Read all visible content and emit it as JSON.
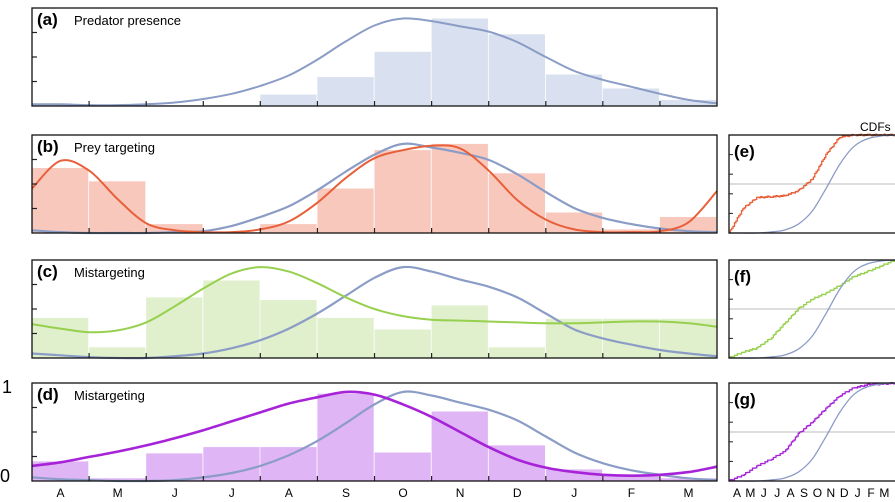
{
  "colors": {
    "background": "#ffffff",
    "predator_fill": "#d9e0ef",
    "predator_line": "#8b9dc6",
    "prey_fill": "#f9c8bc",
    "prey_line": "#e8603a",
    "mis_c_fill": "#e0efcc",
    "mis_c_line": "#97d04f",
    "mis_d_fill": "#dfb5f5",
    "mis_d_line": "#a623d8",
    "ref_line": "#8b9dc6"
  },
  "chart_data": [
    {
      "id": "a",
      "type": "bar",
      "label_letter": "(a)",
      "title": "Predator presence",
      "categories": [
        "A",
        "M",
        "J",
        "J",
        "A",
        "S",
        "O",
        "N",
        "D",
        "J",
        "F",
        "M"
      ],
      "values": [
        0.02,
        0.01,
        0.01,
        0.01,
        0.13,
        0.33,
        0.62,
        1.0,
        0.82,
        0.36,
        0.2,
        0.07
      ],
      "density_line": {
        "x": [
          0,
          0.5,
          1,
          1.5,
          2,
          2.5,
          3,
          3.5,
          4,
          4.5,
          5,
          5.5,
          6,
          6.5,
          7,
          7.5,
          8,
          8.5,
          9,
          9.5,
          10,
          10.5,
          11,
          11.5,
          12
        ],
        "y": [
          0.02,
          0.02,
          0.01,
          0.01,
          0.02,
          0.04,
          0.08,
          0.14,
          0.23,
          0.35,
          0.53,
          0.74,
          0.92,
          1.0,
          0.97,
          0.91,
          0.85,
          0.73,
          0.56,
          0.4,
          0.3,
          0.22,
          0.14,
          0.07,
          0.03
        ]
      },
      "ylim": [
        0,
        1.12
      ]
    },
    {
      "id": "b",
      "type": "bar",
      "label_letter": "(b)",
      "title": "Prey targeting",
      "categories": [
        "A",
        "M",
        "J",
        "J",
        "A",
        "S",
        "O",
        "N",
        "D",
        "J",
        "F",
        "M"
      ],
      "values": [
        0.73,
        0.58,
        0.1,
        0.01,
        0.1,
        0.5,
        0.93,
        1.0,
        0.67,
        0.23,
        0.04,
        0.18
      ],
      "density_line": {
        "x": [
          0,
          0.5,
          1,
          1.5,
          2,
          2.5,
          3,
          3.5,
          4,
          4.5,
          5,
          5.5,
          6,
          6.5,
          7,
          7.5,
          8,
          8.5,
          9,
          9.5,
          10,
          10.5,
          11,
          11.5,
          12
        ],
        "y": [
          0.5,
          0.81,
          0.7,
          0.38,
          0.11,
          0.03,
          0.01,
          0.01,
          0.04,
          0.13,
          0.34,
          0.62,
          0.84,
          0.93,
          0.98,
          0.95,
          0.7,
          0.37,
          0.15,
          0.04,
          0.01,
          0.01,
          0.02,
          0.12,
          0.47
        ]
      },
      "reference_line": {
        "x": [
          0,
          0.5,
          1,
          1.5,
          2,
          2.5,
          3,
          3.5,
          4,
          4.5,
          5,
          5.5,
          6,
          6.5,
          7,
          7.5,
          8,
          8.5,
          9,
          9.5,
          10,
          10.5,
          11,
          11.5,
          12
        ],
        "y": [
          0.03,
          0.01,
          0.0,
          0.0,
          0.0,
          0.01,
          0.02,
          0.08,
          0.18,
          0.3,
          0.48,
          0.69,
          0.88,
          1.0,
          0.96,
          0.9,
          0.82,
          0.66,
          0.46,
          0.28,
          0.17,
          0.1,
          0.05,
          0.02,
          0.01
        ]
      },
      "ylim": [
        0,
        1.1
      ]
    },
    {
      "id": "c",
      "type": "bar",
      "label_letter": "(c)",
      "title": "Mistargeting",
      "categories": [
        "A",
        "M",
        "J",
        "J",
        "A",
        "S",
        "O",
        "N",
        "D",
        "J",
        "F",
        "M"
      ],
      "values": [
        0.45,
        0.12,
        0.68,
        0.87,
        0.65,
        0.45,
        0.32,
        0.59,
        0.12,
        0.44,
        0.44,
        0.44
      ],
      "density_line": {
        "x": [
          0,
          0.5,
          1,
          1.5,
          2,
          2.5,
          3,
          3.5,
          4,
          4.5,
          5,
          5.5,
          6,
          6.5,
          7,
          7.5,
          8,
          8.5,
          9,
          9.5,
          10,
          10.5,
          11,
          11.5,
          12
        ],
        "y": [
          0.38,
          0.33,
          0.29,
          0.31,
          0.4,
          0.58,
          0.78,
          0.95,
          1.02,
          0.97,
          0.84,
          0.68,
          0.55,
          0.47,
          0.43,
          0.42,
          0.41,
          0.4,
          0.39,
          0.39,
          0.4,
          0.41,
          0.41,
          0.39,
          0.35
        ]
      },
      "reference_line": {
        "x": [
          0,
          0.5,
          1,
          1.5,
          2,
          2.5,
          3,
          3.5,
          4,
          4.5,
          5,
          5.5,
          6,
          6.5,
          7,
          7.5,
          8,
          8.5,
          9,
          9.5,
          10,
          10.5,
          11,
          11.5,
          12
        ],
        "y": [
          0.05,
          0.03,
          0.01,
          0.0,
          0.0,
          0.02,
          0.05,
          0.11,
          0.2,
          0.33,
          0.5,
          0.7,
          0.9,
          1.02,
          0.97,
          0.88,
          0.8,
          0.68,
          0.5,
          0.32,
          0.22,
          0.15,
          0.09,
          0.05,
          0.02
        ]
      },
      "ylim": [
        0,
        1.1
      ]
    },
    {
      "id": "d",
      "type": "bar",
      "label_letter": "(d)",
      "title": "Mistargeting",
      "categories": [
        "A",
        "M",
        "J",
        "J",
        "A",
        "S",
        "O",
        "N",
        "D",
        "J",
        "F",
        "M"
      ],
      "values": [
        0.22,
        0.03,
        0.31,
        0.38,
        0.38,
        0.98,
        0.32,
        0.78,
        0.4,
        0.13,
        0.06,
        0.03
      ],
      "density_line": {
        "x": [
          0,
          0.5,
          1,
          1.5,
          2,
          2.5,
          3,
          3.5,
          4,
          4.5,
          5,
          5.5,
          6,
          6.5,
          7,
          7.5,
          8,
          8.5,
          9,
          9.5,
          10,
          10.5,
          11,
          11.5,
          12
        ],
        "y": [
          0.17,
          0.21,
          0.27,
          0.33,
          0.4,
          0.48,
          0.57,
          0.67,
          0.77,
          0.87,
          0.94,
          1.0,
          0.97,
          0.86,
          0.72,
          0.55,
          0.38,
          0.24,
          0.15,
          0.1,
          0.07,
          0.06,
          0.07,
          0.1,
          0.16
        ]
      },
      "reference_line": {
        "x": [
          0,
          0.5,
          1,
          1.5,
          2,
          2.5,
          3,
          3.5,
          4,
          4.5,
          5,
          5.5,
          6,
          6.5,
          7,
          7.5,
          8,
          8.5,
          9,
          9.5,
          10,
          10.5,
          11,
          11.5,
          12
        ],
        "y": [
          0.04,
          0.02,
          0.01,
          0.0,
          0.0,
          0.01,
          0.04,
          0.09,
          0.17,
          0.29,
          0.45,
          0.65,
          0.86,
          1.0,
          0.96,
          0.88,
          0.8,
          0.68,
          0.5,
          0.32,
          0.2,
          0.12,
          0.07,
          0.03,
          0.01
        ]
      },
      "ylim": [
        0,
        1.1
      ],
      "yticks": [
        "0",
        "1"
      ]
    },
    {
      "id": "e",
      "type": "line",
      "label_letter": "(e)",
      "panel_header": "CDFs",
      "x": [
        0,
        1,
        2,
        3,
        4,
        5,
        6,
        7,
        8,
        9,
        10,
        11,
        12
      ],
      "series": [
        {
          "color_key": "prey_line",
          "values": [
            0.0,
            0.25,
            0.36,
            0.37,
            0.38,
            0.43,
            0.55,
            0.8,
            0.98,
            1.0,
            1.0,
            1.0,
            1.0
          ]
        },
        {
          "color_key": "ref_line",
          "values": [
            0.0,
            0.0,
            0.0,
            0.01,
            0.03,
            0.09,
            0.22,
            0.45,
            0.7,
            0.88,
            0.96,
            0.99,
            1.0
          ]
        }
      ],
      "ylim": [
        0,
        1
      ]
    },
    {
      "id": "f",
      "type": "line",
      "label_letter": "(f)",
      "x": [
        0,
        1,
        2,
        3,
        4,
        5,
        6,
        7,
        8,
        9,
        10,
        11,
        12
      ],
      "series": [
        {
          "color_key": "mis_c_line",
          "values": [
            0.0,
            0.06,
            0.1,
            0.2,
            0.35,
            0.5,
            0.6,
            0.66,
            0.74,
            0.83,
            0.88,
            0.94,
            1.0
          ]
        },
        {
          "color_key": "ref_line",
          "values": [
            0.0,
            0.0,
            0.0,
            0.01,
            0.03,
            0.09,
            0.22,
            0.45,
            0.7,
            0.88,
            0.96,
            0.99,
            1.0
          ]
        }
      ],
      "ylim": [
        0,
        1
      ]
    },
    {
      "id": "g",
      "type": "line",
      "label_letter": "(g)",
      "x": [
        0,
        1,
        2,
        3,
        4,
        5,
        6,
        7,
        8,
        9,
        10,
        11,
        12
      ],
      "series": [
        {
          "color_key": "mis_d_line",
          "values": [
            0.0,
            0.06,
            0.15,
            0.22,
            0.3,
            0.48,
            0.6,
            0.74,
            0.87,
            0.95,
            0.98,
            0.99,
            1.0
          ]
        },
        {
          "color_key": "ref_line",
          "values": [
            0.0,
            0.0,
            0.0,
            0.01,
            0.03,
            0.09,
            0.22,
            0.45,
            0.7,
            0.88,
            0.96,
            0.99,
            1.0
          ]
        }
      ],
      "ylim": [
        0,
        1
      ],
      "xticklabels": [
        "A",
        "M",
        "J",
        "J",
        "A",
        "S",
        "O",
        "N",
        "D",
        "J",
        "F",
        "M"
      ]
    }
  ]
}
